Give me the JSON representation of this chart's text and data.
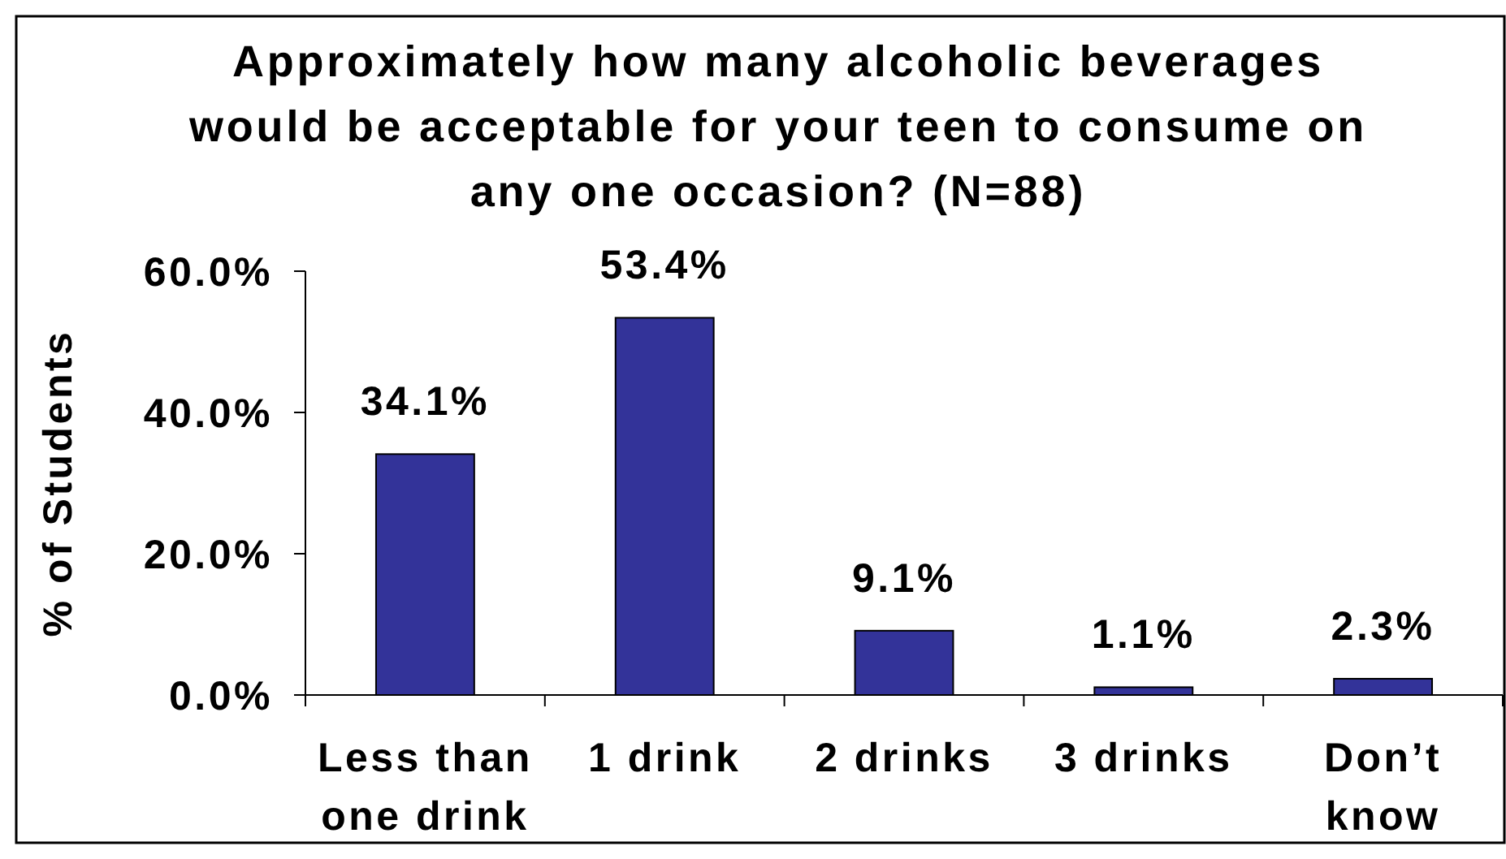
{
  "chart_data": {
    "type": "bar",
    "title": "Approximately how many alcoholic beverages would be acceptable for your teen to consume on any one occasion? (N=88)",
    "ylabel": "% of Students",
    "categories": [
      "Less than one drink",
      "1 drink",
      "2 drinks",
      "3 drinks",
      "Don’t know"
    ],
    "values": [
      34.1,
      53.4,
      9.1,
      1.1,
      2.3
    ],
    "value_labels": [
      "34.1%",
      "53.4%",
      "9.1%",
      "1.1%",
      "2.3%"
    ],
    "color": "#333399",
    "ylim": [
      0,
      60
    ],
    "yticks": [
      {
        "value": 0,
        "label": "0.0%"
      },
      {
        "value": 20,
        "label": "20.0%"
      },
      {
        "value": 40,
        "label": "40.0%"
      },
      {
        "value": 60,
        "label": "60.0%"
      }
    ],
    "grid": false
  }
}
